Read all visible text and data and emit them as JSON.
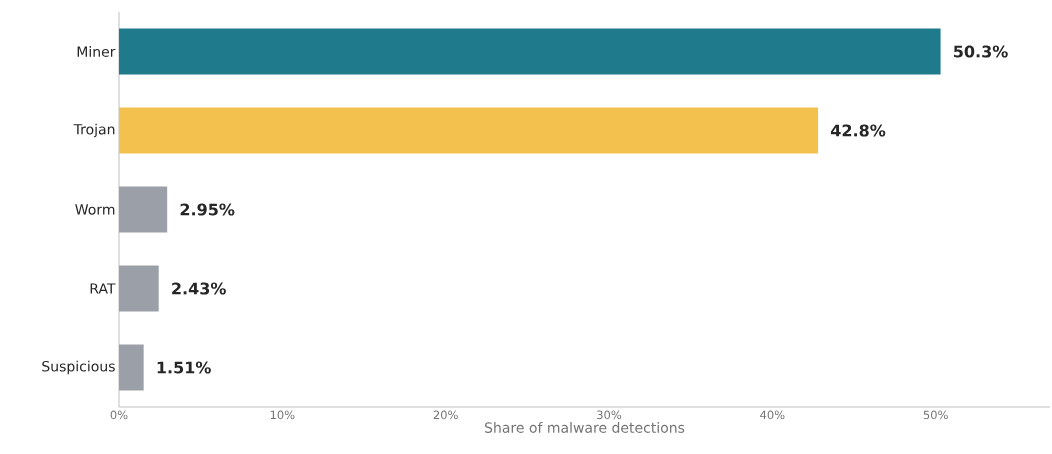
{
  "chart_data": {
    "type": "bar",
    "orientation": "horizontal",
    "xlabel": "Share of malware detections",
    "categories": [
      "Miner",
      "Trojan",
      "Worm",
      "RAT",
      "Suspicious"
    ],
    "values": [
      50.3,
      42.8,
      2.95,
      2.43,
      1.51
    ],
    "colors": [
      "#1f7a8c",
      "#f2c14e",
      "#9ba0a8",
      "#9ba0a8",
      "#9ba0a8"
    ],
    "value_labels": [
      "50.3%",
      "42.8%",
      "2.95%",
      "2.43%",
      "1.51%"
    ],
    "xlim": [
      0,
      57
    ],
    "xticks": [
      {
        "value": 0,
        "label": "0%"
      },
      {
        "value": 10,
        "label": "10%"
      },
      {
        "value": 20,
        "label": "20%"
      },
      {
        "value": 30,
        "label": "30%"
      },
      {
        "value": 40,
        "label": "40%"
      },
      {
        "value": 50,
        "label": "50%"
      }
    ],
    "grid": false
  }
}
